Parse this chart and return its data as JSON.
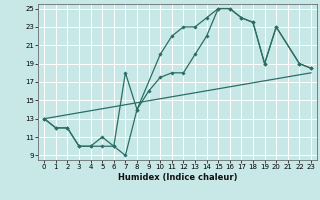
{
  "xlabel": "Humidex (Indice chaleur)",
  "bg_color": "#c8e8e8",
  "grid_color": "#ffffff",
  "line_color": "#2a6e65",
  "xlim": [
    -0.5,
    23.5
  ],
  "ylim": [
    8.5,
    25.5
  ],
  "xticks": [
    0,
    1,
    2,
    3,
    4,
    5,
    6,
    7,
    8,
    9,
    10,
    11,
    12,
    13,
    14,
    15,
    16,
    17,
    18,
    19,
    20,
    21,
    22,
    23
  ],
  "yticks": [
    9,
    11,
    13,
    15,
    17,
    19,
    21,
    23,
    25
  ],
  "line1_x": [
    0,
    1,
    2,
    3,
    4,
    5,
    6,
    7,
    8,
    10,
    11,
    12,
    13,
    14,
    15,
    16,
    17,
    18,
    19,
    20,
    22,
    23
  ],
  "line1_y": [
    13,
    12,
    12,
    10,
    10,
    10,
    10,
    9,
    14,
    20,
    22,
    23,
    23,
    24,
    25,
    25,
    24,
    23.5,
    19,
    23,
    19,
    18.5
  ],
  "line2_x": [
    0,
    1,
    2,
    3,
    4,
    5,
    6,
    7,
    8,
    9,
    10,
    11,
    12,
    13,
    14,
    15,
    16,
    17,
    18,
    19,
    20,
    22,
    23
  ],
  "line2_y": [
    13,
    12,
    12,
    10,
    10,
    11,
    10,
    18,
    14,
    16,
    17.5,
    18,
    18,
    20,
    22,
    25,
    25,
    24,
    23.5,
    19,
    23,
    19,
    18.5
  ],
  "line3_x": [
    0,
    23
  ],
  "line3_y": [
    13,
    18
  ]
}
